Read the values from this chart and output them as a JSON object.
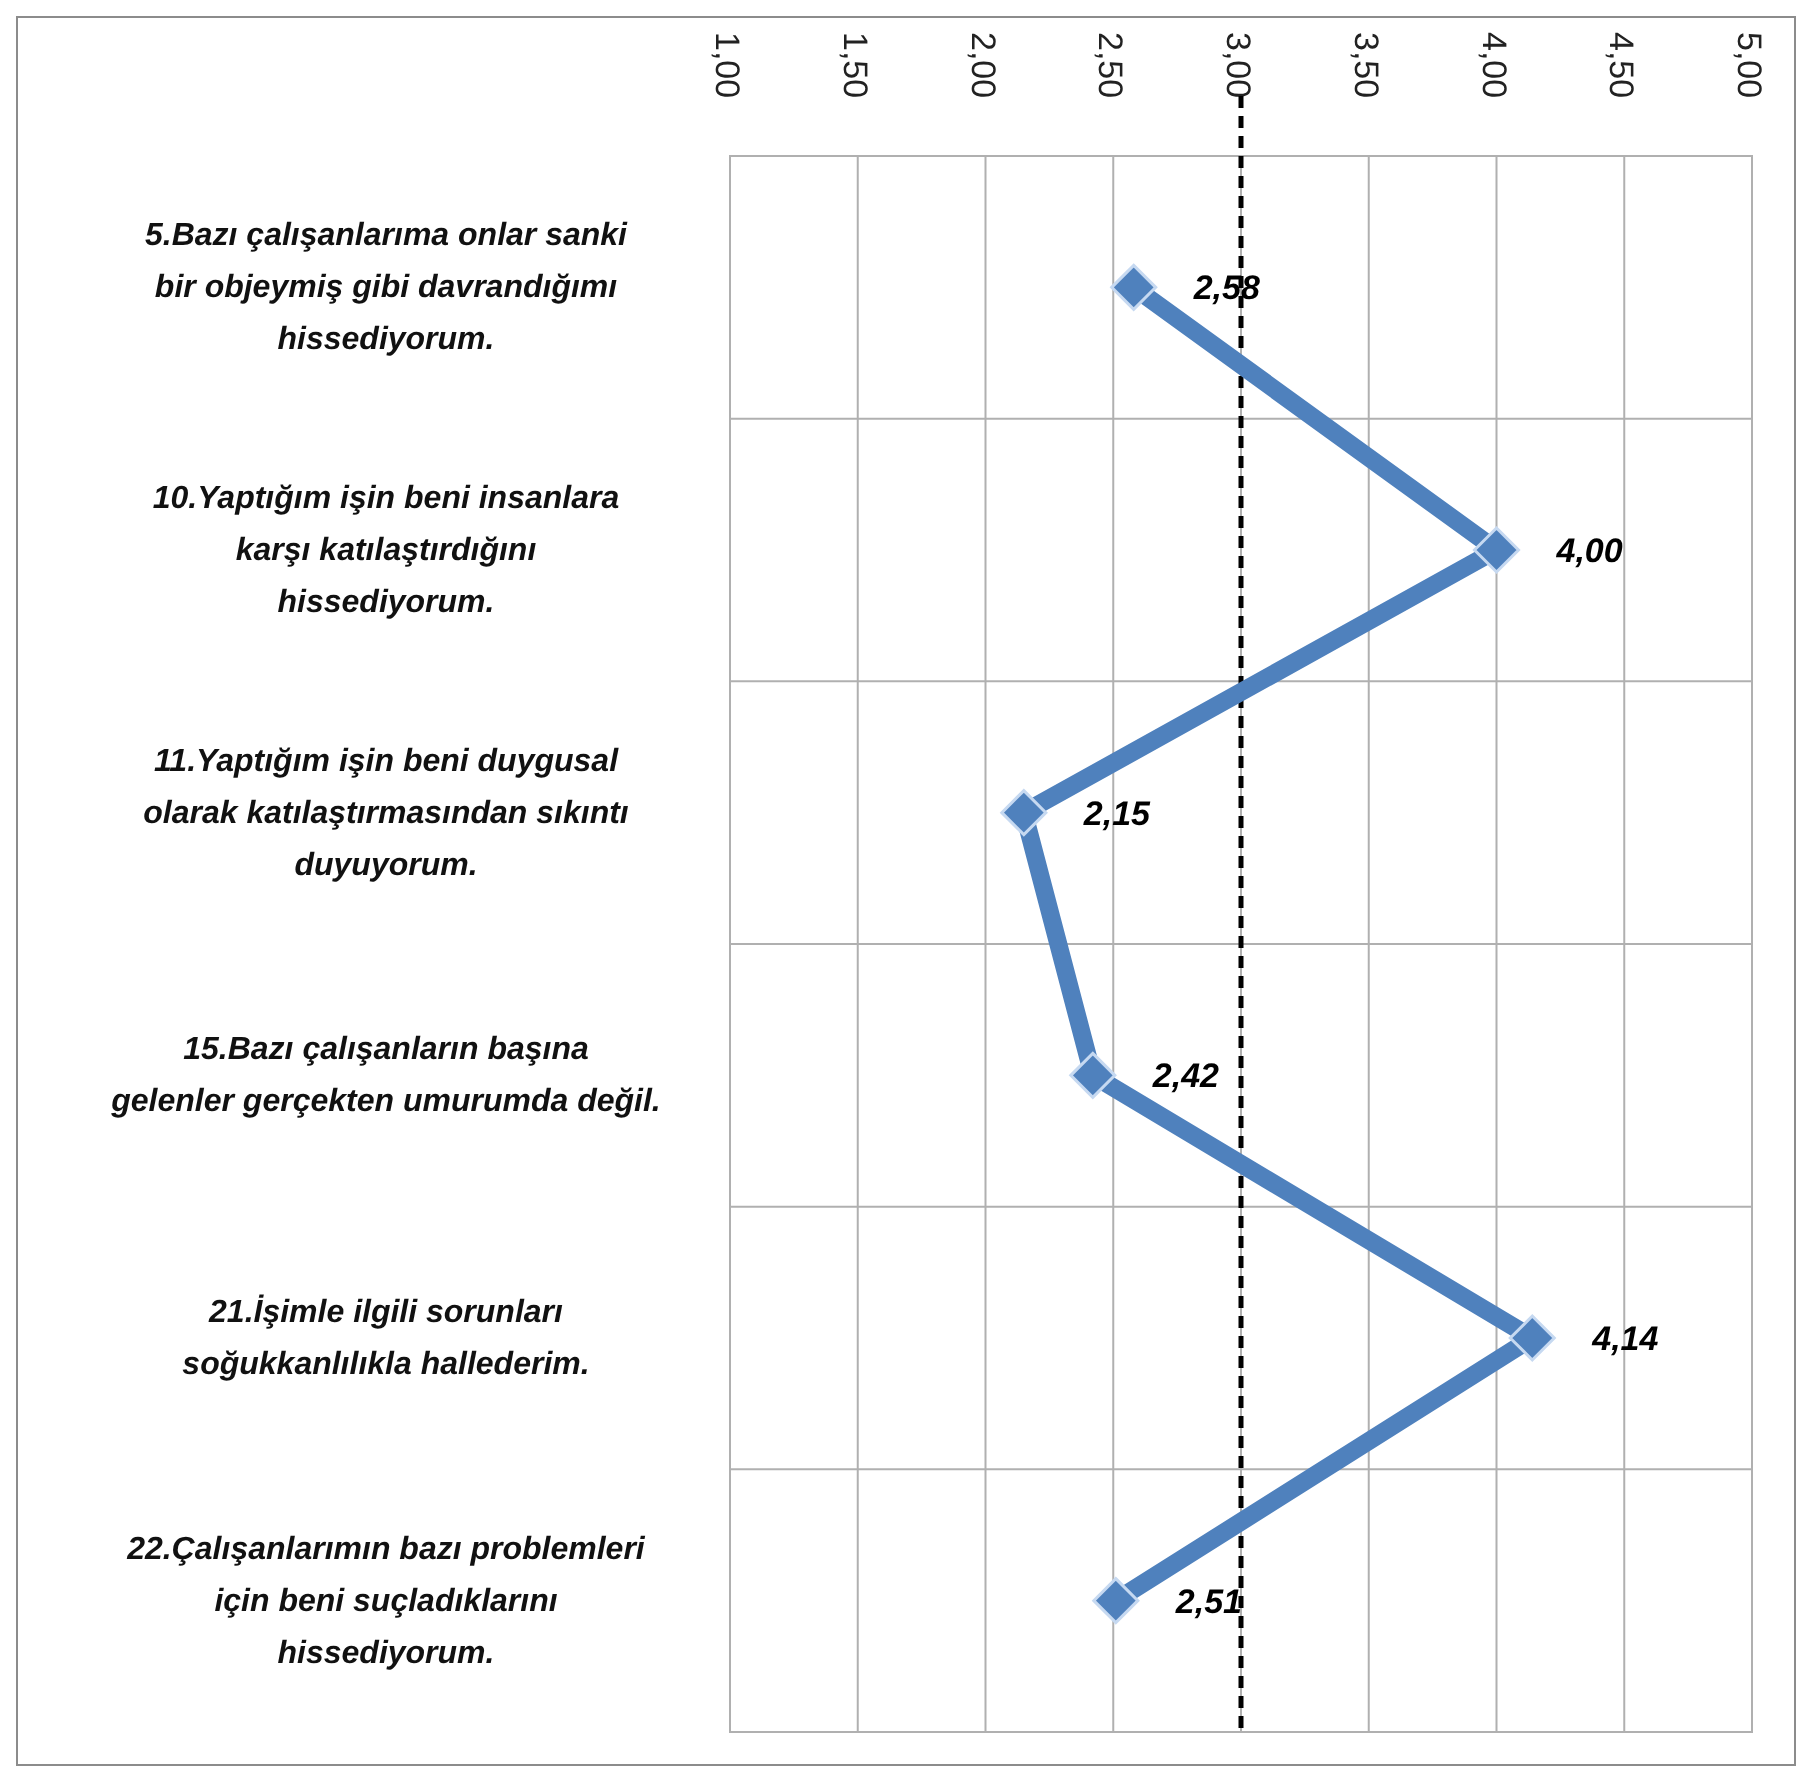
{
  "chart_data": {
    "type": "line",
    "orientation": "horizontal",
    "categories": [
      "5.Bazı çalışanlarıma onlar sanki bir objeymiş gibi davrandığımı hissediyorum.",
      "10.Yaptığım işin beni insanlara karşı katılaştırdığını hissediyorum.",
      "11.Yaptığım işin beni duygusal olarak katılaştırmasından sıkıntı duyuyorum.",
      "15.Bazı çalışanların başına gelenler gerçekten umurumda değil.",
      "21.İşimle ilgili sorunları soğukkanlılıkla hallederim.",
      "22.Çalışanlarımın bazı problemleri için beni suçladıklarını hissediyorum."
    ],
    "series": [
      {
        "color": "#4f81bd",
        "values": [
          2.58,
          4.0,
          2.15,
          2.42,
          4.14,
          2.51
        ]
      }
    ],
    "value_labels": [
      "2,58",
      "4,00",
      "2,15",
      "2,42",
      "4,14",
      "2,51"
    ],
    "xlim": [
      1,
      5
    ],
    "xticks": [
      {
        "value": 1,
        "label": "1,00"
      },
      {
        "value": 1.5,
        "label": "1,50"
      },
      {
        "value": 2,
        "label": "2,00"
      },
      {
        "value": 2.5,
        "label": "2,50"
      },
      {
        "value": 3,
        "label": "3,00"
      },
      {
        "value": 3.5,
        "label": "3,50"
      },
      {
        "value": 4,
        "label": "4,00"
      },
      {
        "value": 4.5,
        "label": "4,50"
      },
      {
        "value": 5,
        "label": "5,00"
      }
    ],
    "ref_lines": [
      {
        "axis": "x",
        "value": 3,
        "color": "#000000",
        "line_style": "dashed"
      }
    ],
    "grid": true,
    "marker": "diamond",
    "line_style": "solid"
  }
}
